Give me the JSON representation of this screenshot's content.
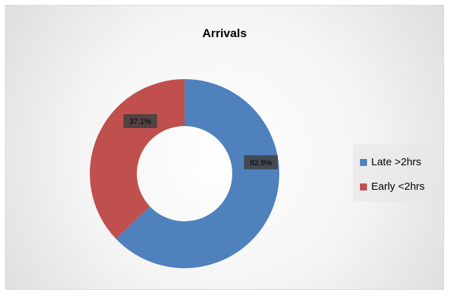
{
  "chart_data": {
    "type": "pie",
    "variant": "doughnut",
    "title": "Arrivals",
    "categories": [
      "Late >2hrs",
      "Early <2hrs"
    ],
    "values": [
      62.9,
      37.1
    ],
    "data_labels": [
      "62.9%",
      "37.1%"
    ],
    "colors": [
      "#4f81bd",
      "#c0504d"
    ],
    "legend_position": "right"
  }
}
